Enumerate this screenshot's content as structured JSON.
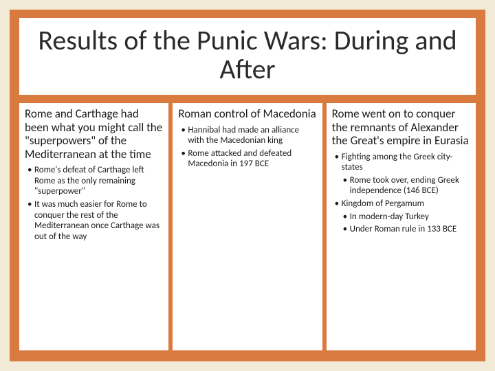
{
  "slide": {
    "title": "Results of the Punic Wars: During and After",
    "outer_bg": "#f0ead6",
    "inner_bg": "#d97b3f",
    "panel_bg": "#ffffff",
    "title_fontsize": 40,
    "head_fontsize": 17,
    "bullet_fontsize": 13
  },
  "col1": {
    "head": "Rome and Carthage had been what you might call the \"superpowers\" of the Mediterranean at the time",
    "b1": "Rome's defeat of Carthage left Rome as the only remaining \"superpower\"",
    "b2": "It was much easier for Rome to conquer the rest of the Mediterranean once Carthage was out of the way"
  },
  "col2": {
    "head": "Roman control of Macedonia",
    "b1": "Hannibal had made an alliance with the Macedonian king",
    "b2": "Rome attacked and defeated Macedonia in 197 BCE"
  },
  "col3": {
    "head": "Rome went on to conquer the remnants of Alexander the Great's empire in Eurasia",
    "b1": "Fighting among the Greek city-states",
    "b1a": "Rome took over, ending Greek independence (146 BCE)",
    "b2": "Kingdom of Pergamum",
    "b2a": "In modern-day Turkey",
    "b2b": "Under Roman rule in 133 BCE"
  }
}
